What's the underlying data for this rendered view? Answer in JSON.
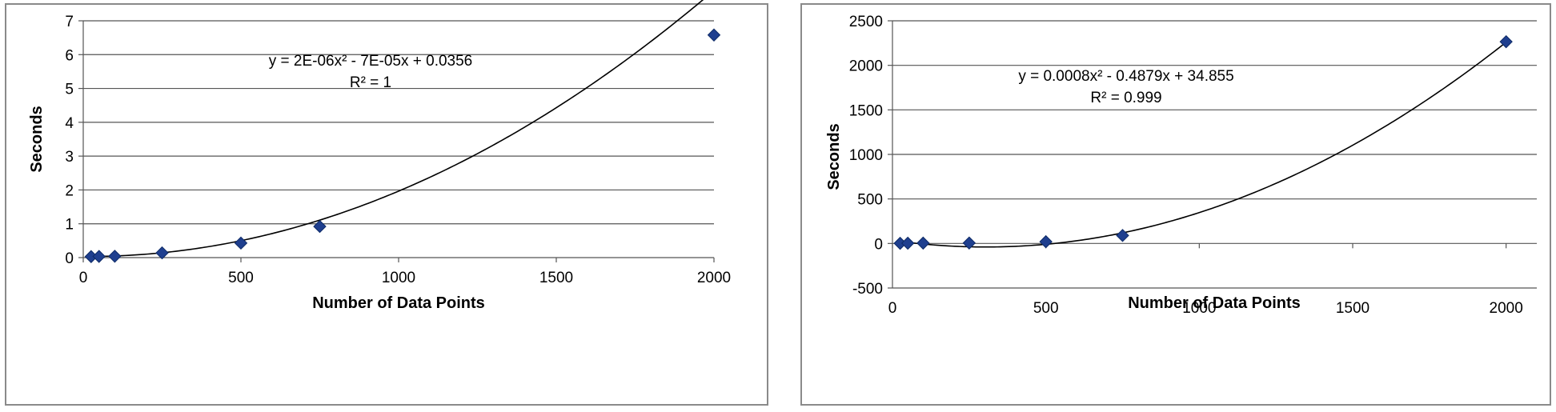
{
  "chart_data": [
    {
      "type": "scatter",
      "xlabel": "Number of Data Points",
      "ylabel": "Seconds",
      "xlim": [
        0,
        2000
      ],
      "ylim": [
        0,
        7
      ],
      "xticks": [
        0,
        500,
        1000,
        1500,
        2000
      ],
      "yticks": [
        0,
        1,
        2,
        3,
        4,
        5,
        6,
        7
      ],
      "grid": "horizontal",
      "marker_color": "#1f3f8f",
      "points": [
        {
          "x": 25,
          "y": 0.03
        },
        {
          "x": 50,
          "y": 0.035
        },
        {
          "x": 100,
          "y": 0.04
        },
        {
          "x": 250,
          "y": 0.14
        },
        {
          "x": 500,
          "y": 0.43
        },
        {
          "x": 750,
          "y": 0.92
        },
        {
          "x": 2000,
          "y": 6.58
        }
      ],
      "trendline": {
        "type": "polynomial",
        "coefficients": [
          2e-06,
          -7e-05,
          0.0356
        ]
      },
      "equation": "y = 2E-06x² - 7E-05x + 0.0356",
      "r_squared": "R² = 1"
    },
    {
      "type": "scatter",
      "xlabel": "Number of Data Points",
      "ylabel": "Seconds",
      "xlim": [
        0,
        2100
      ],
      "ylim": [
        -500,
        2500
      ],
      "xticks": [
        0,
        500,
        1000,
        1500,
        2000
      ],
      "yticks": [
        -500,
        0,
        500,
        1000,
        1500,
        2000,
        2500
      ],
      "grid": "horizontal",
      "marker_color": "#1f3f8f",
      "points": [
        {
          "x": 25,
          "y": 2
        },
        {
          "x": 50,
          "y": 3
        },
        {
          "x": 100,
          "y": 4
        },
        {
          "x": 250,
          "y": 5
        },
        {
          "x": 500,
          "y": 20
        },
        {
          "x": 750,
          "y": 90
        },
        {
          "x": 2000,
          "y": 2265
        }
      ],
      "trendline": {
        "type": "polynomial",
        "coefficients": [
          0.0008,
          -0.4879,
          34.855
        ]
      },
      "equation": "y = 0.0008x² - 0.4879x + 34.855",
      "r_squared": "R² = 0.999"
    }
  ]
}
